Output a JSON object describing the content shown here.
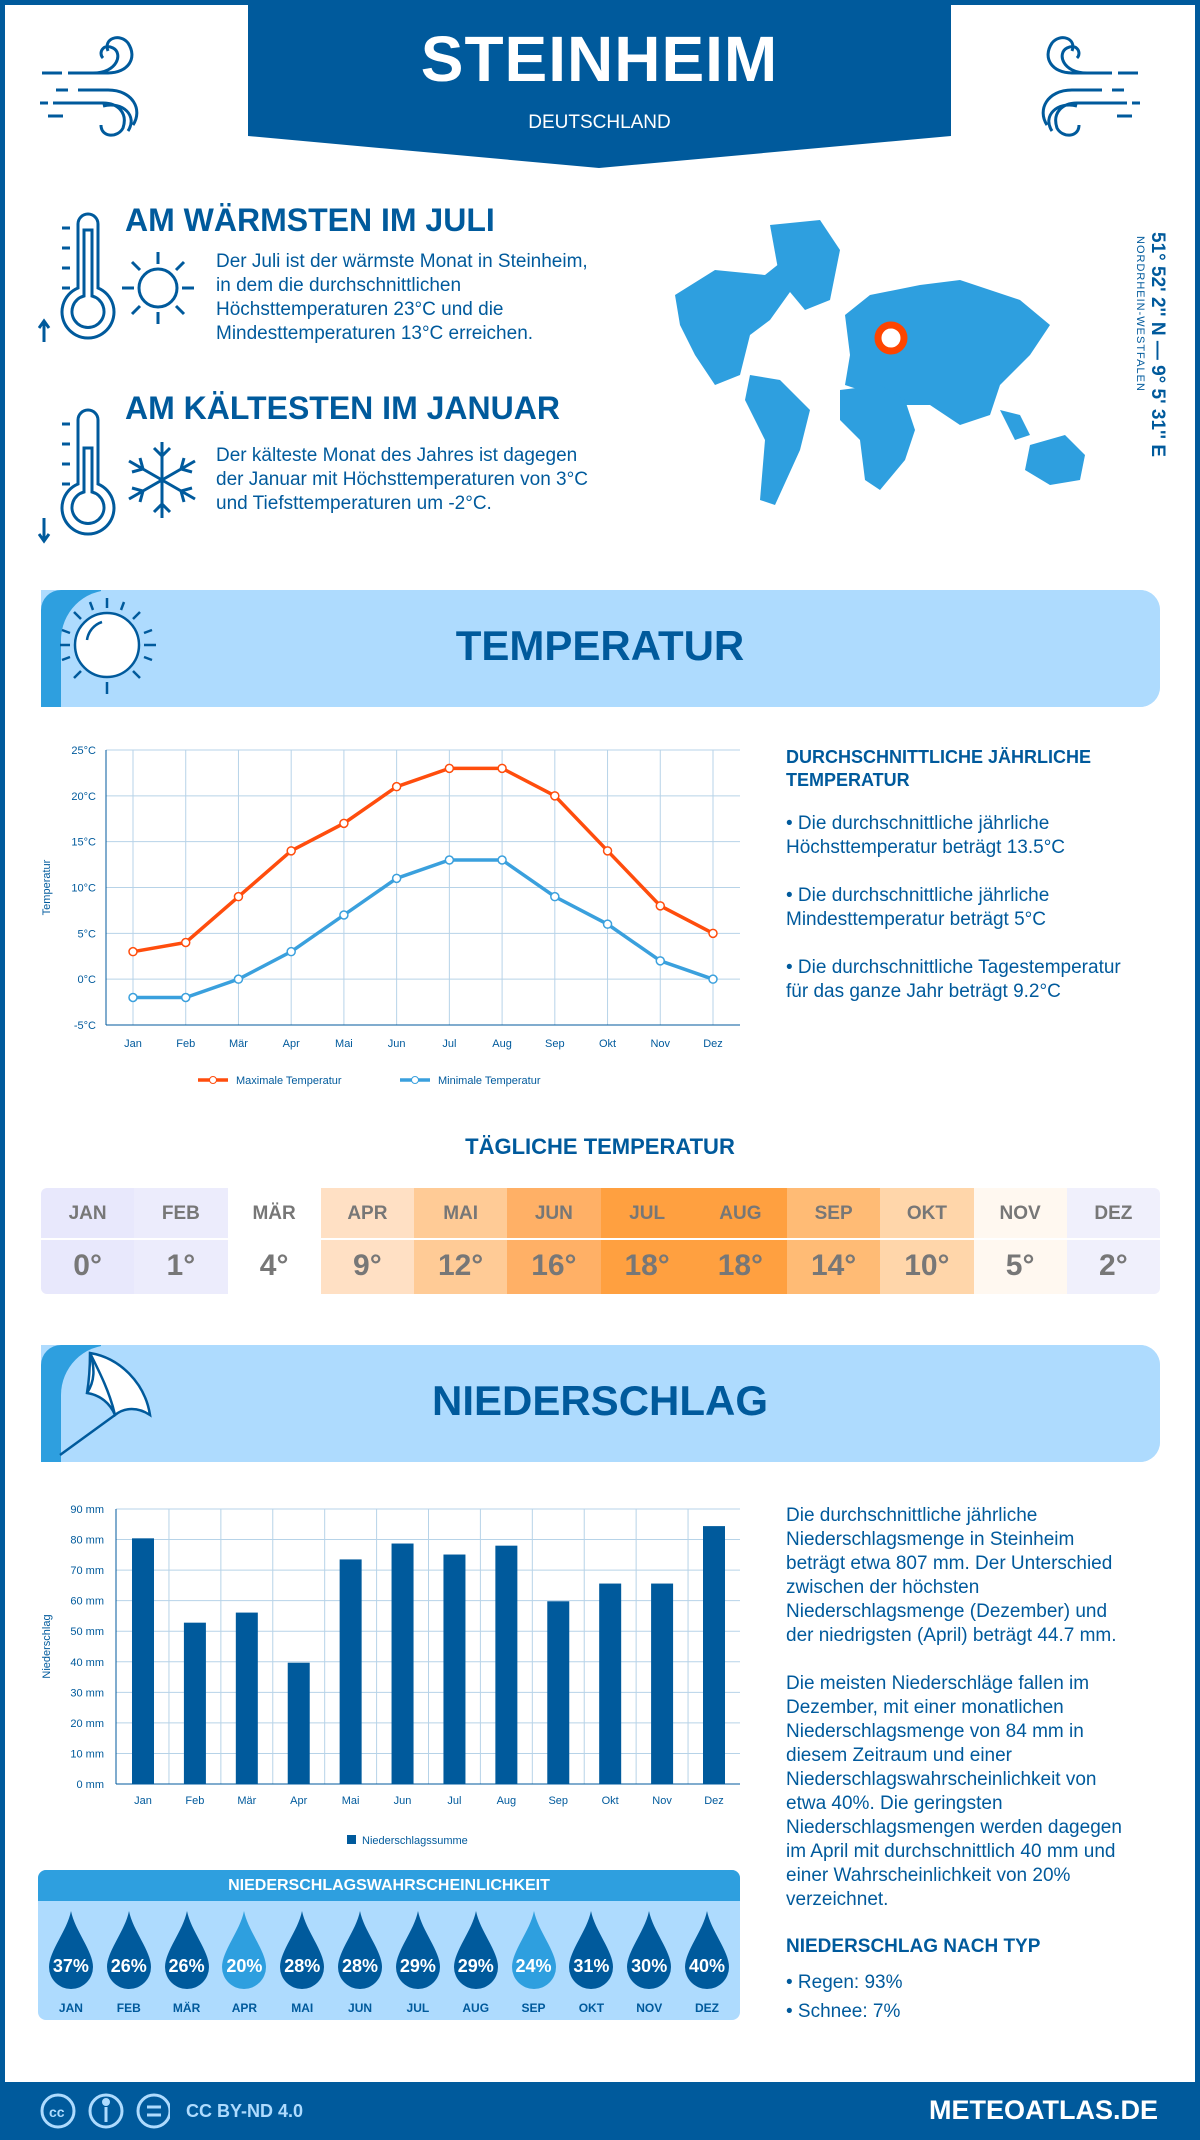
{
  "header": {
    "city": "STEINHEIM",
    "country": "DEUTSCHLAND"
  },
  "warmest": {
    "title": "AM WÄRMSTEN IM JULI",
    "lines": [
      "Der Juli ist der wärmste Monat in Steinheim,",
      "in dem die durchschnittlichen",
      "Höchsttemperaturen 23°C und die",
      "Mindesttemperaturen 13°C erreichen."
    ]
  },
  "coldest": {
    "title": "AM KÄLTESTEN IM JANUAR",
    "lines": [
      "Der kälteste Monat des Jahres ist dagegen",
      "der Januar mit Höchsttemperaturen von 3°C",
      "und Tiefsttemperaturen um -2°C."
    ]
  },
  "location": {
    "coords": "51° 52' 2'' N — 9° 5' 31'' E",
    "region": "NORDRHEIN-WESTFALEN",
    "marker_color": "#ff4500"
  },
  "temperature": {
    "section_title": "TEMPERATUR",
    "summary_title_1": "DURCHSCHNITTLICHE JÄHRLICHE",
    "summary_title_2": "TEMPERATUR",
    "bullets": [
      [
        "• Die durchschnittliche jährliche",
        "Höchsttemperatur beträgt 13.5°C"
      ],
      [
        "• Die durchschnittliche jährliche",
        "Mindesttemperatur beträgt 5°C"
      ],
      [
        "• Die durchschnittliche Tagestemperatur",
        "für das ganze Jahr beträgt 9.2°C"
      ]
    ],
    "daily_title": "TÄGLICHE TEMPERATUR",
    "daily": [
      {
        "m": "JAN",
        "v": "0°",
        "c": "#e8e8fc"
      },
      {
        "m": "FEB",
        "v": "1°",
        "c": "#ececfc"
      },
      {
        "m": "MÄR",
        "v": "4°",
        "c": "#ffffff"
      },
      {
        "m": "APR",
        "v": "9°",
        "c": "#ffe0c4"
      },
      {
        "m": "MAI",
        "v": "12°",
        "c": "#ffcb96"
      },
      {
        "m": "JUN",
        "v": "16°",
        "c": "#ffb066"
      },
      {
        "m": "JUL",
        "v": "18°",
        "c": "#ffa040"
      },
      {
        "m": "AUG",
        "v": "18°",
        "c": "#ffa040"
      },
      {
        "m": "SEP",
        "v": "14°",
        "c": "#ffbb75"
      },
      {
        "m": "OKT",
        "v": "10°",
        "c": "#ffd6aa"
      },
      {
        "m": "NOV",
        "v": "5°",
        "c": "#fff8f0"
      },
      {
        "m": "DEZ",
        "v": "2°",
        "c": "#f0f0fc"
      }
    ]
  },
  "precipitation": {
    "section_title": "NIEDERSCHLAG",
    "text1": [
      "Die durchschnittliche jährliche",
      "Niederschlagsmenge in Steinheim",
      "beträgt etwa 807 mm. Der Unterschied",
      "zwischen der höchsten",
      "Niederschlagsmenge (Dezember) und",
      "der niedrigsten (April) beträgt 44.7 mm."
    ],
    "text2": [
      "Die meisten Niederschläge fallen im",
      "Dezember, mit einer monatlichen",
      "Niederschlagsmenge von 84 mm in",
      "diesem Zeitraum und einer",
      "Niederschlagswahrscheinlichkeit von",
      "etwa 40%. Die geringsten",
      "Niederschlagsmengen werden dagegen",
      "im April mit durchschnittlich 40 mm und",
      "einer Wahrscheinlichkeit von 20%",
      "verzeichnet."
    ],
    "type_title": "NIEDERSCHLAG NACH TYP",
    "types": [
      "• Regen: 93%",
      "• Schnee: 7%"
    ],
    "prob_title": "NIEDERSCHLAGSWAHRSCHEINLICHKEIT",
    "prob": [
      {
        "m": "JAN",
        "v": "37%",
        "c": "#005a9c"
      },
      {
        "m": "FEB",
        "v": "26%",
        "c": "#005a9c"
      },
      {
        "m": "MÄR",
        "v": "26%",
        "c": "#005a9c"
      },
      {
        "m": "APR",
        "v": "20%",
        "c": "#2e9fdf"
      },
      {
        "m": "MAI",
        "v": "28%",
        "c": "#005a9c"
      },
      {
        "m": "JUN",
        "v": "28%",
        "c": "#005a9c"
      },
      {
        "m": "JUL",
        "v": "29%",
        "c": "#005a9c"
      },
      {
        "m": "AUG",
        "v": "29%",
        "c": "#005a9c"
      },
      {
        "m": "SEP",
        "v": "24%",
        "c": "#2e9fdf"
      },
      {
        "m": "OKT",
        "v": "31%",
        "c": "#005a9c"
      },
      {
        "m": "NOV",
        "v": "30%",
        "c": "#005a9c"
      },
      {
        "m": "DEZ",
        "v": "40%",
        "c": "#005a9c"
      }
    ]
  },
  "chart_data": [
    {
      "type": "line",
      "categories": [
        "Jan",
        "Feb",
        "Mär",
        "Apr",
        "Mai",
        "Jun",
        "Jul",
        "Aug",
        "Sep",
        "Okt",
        "Nov",
        "Dez"
      ],
      "ylabel": "Temperatur",
      "ylim": [
        -5,
        25
      ],
      "yticks": [
        "-5°C",
        "0°C",
        "5°C",
        "10°C",
        "15°C",
        "20°C",
        "25°C"
      ],
      "grid": true,
      "legend": "bottom",
      "series": [
        {
          "name": "Maximale Temperatur",
          "color": "#ff4d0d",
          "values": [
            3,
            4,
            9,
            14,
            17,
            21,
            23,
            23,
            20,
            14,
            8,
            5
          ]
        },
        {
          "name": "Minimale Temperatur",
          "color": "#3aa0dd",
          "values": [
            -2,
            -2,
            0,
            3,
            7,
            11,
            13,
            13,
            9,
            6,
            2,
            0
          ]
        }
      ]
    },
    {
      "type": "bar",
      "categories": [
        "Jan",
        "Feb",
        "Mär",
        "Apr",
        "Mai",
        "Jun",
        "Jul",
        "Aug",
        "Sep",
        "Okt",
        "Nov",
        "Dez"
      ],
      "ylabel": "Niederschlag",
      "ylim": [
        0,
        90
      ],
      "yticks": [
        "0 mm",
        "10 mm",
        "20 mm",
        "30 mm",
        "40 mm",
        "50 mm",
        "60 mm",
        "70 mm",
        "80 mm",
        "90 mm"
      ],
      "grid": true,
      "legend": "bottom",
      "series": [
        {
          "name": "Niederschlagssumme",
          "color": "#005a9c",
          "values": [
            80.4,
            52.8,
            56.1,
            39.7,
            73.5,
            78.7,
            75.1,
            78.0,
            59.8,
            65.6,
            65.6,
            84.4
          ]
        }
      ]
    }
  ],
  "footer": {
    "license": "CC BY-ND 4.0",
    "site": "METEOATLAS.DE"
  }
}
